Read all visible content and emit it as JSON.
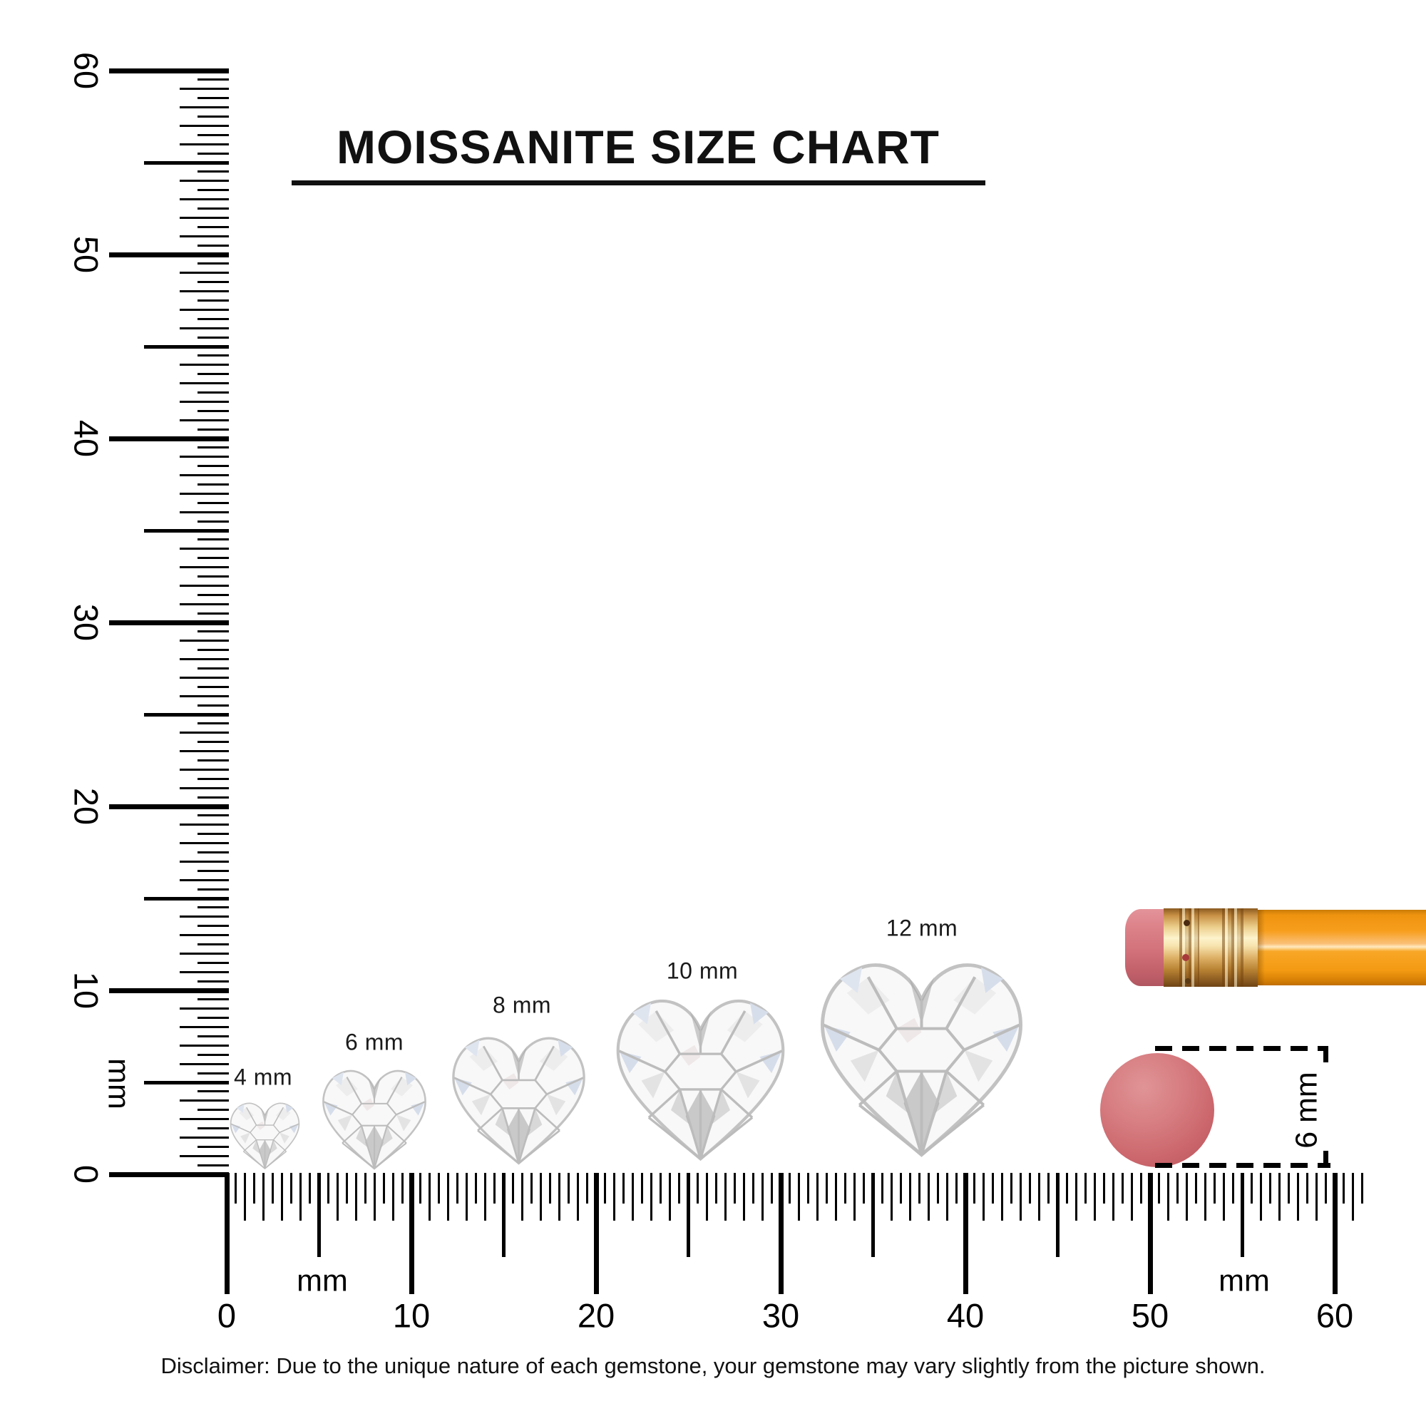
{
  "title": {
    "text": "MOISSANITE SIZE CHART"
  },
  "rulers": {
    "vertical": {
      "unit": "mm",
      "tick_labels": [
        "0",
        "10",
        "20",
        "30",
        "40",
        "50",
        "60"
      ]
    },
    "horizontal": {
      "unit_left": "mm",
      "unit_right": "mm",
      "tick_labels": [
        "0",
        "10",
        "20",
        "30",
        "40",
        "50",
        "60"
      ]
    }
  },
  "gems": [
    {
      "label": "4 mm",
      "size_mm": 4
    },
    {
      "label": "6 mm",
      "size_mm": 6
    },
    {
      "label": "8 mm",
      "size_mm": 8
    },
    {
      "label": "10 mm",
      "size_mm": 10
    },
    {
      "label": "12 mm",
      "size_mm": 12
    }
  ],
  "reference_objects": {
    "pencil": {
      "name": "pencil",
      "body_color": "#f79e1d",
      "ferrule_color": "#ddb066",
      "tip_eraser_color": "#d2717a"
    },
    "round_eraser": {
      "name": "round-eraser",
      "color": "#cb666c",
      "measure_label": "6 mm"
    }
  },
  "disclaimer": {
    "text": "Disclaimer: Due to the unique nature of each gemstone, your gemstone may vary slightly from the picture shown."
  }
}
